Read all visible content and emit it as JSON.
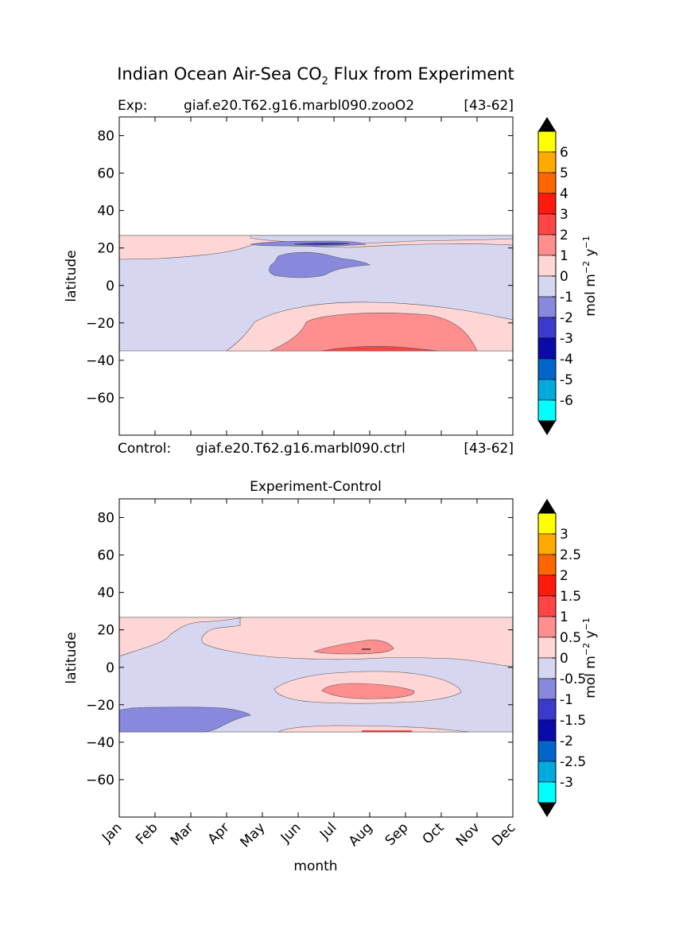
{
  "title_main": "Indian Ocean Air-Sea CO",
  "title_sub": "2",
  "title_rest": " Flux from Experiment",
  "xlabel": "month",
  "ylabel": "latitude",
  "colorbar_label_main": "mol m",
  "colorbar_label_exp1": "−2",
  "colorbar_label_mid": "  y",
  "colorbar_label_exp2": "−1",
  "months": [
    "Jan",
    "Feb",
    "Mar",
    "Apr",
    "May",
    "Jun",
    "Jul",
    "Aug",
    "Sep",
    "Oct",
    "Nov",
    "Dec"
  ],
  "y_ticks": [
    "80",
    "60",
    "40",
    "20",
    "0",
    "−20",
    "−40",
    "−60"
  ],
  "panel_top": {
    "header_left": "Exp:",
    "header_mid": "giaf.e20.T62.g16.marbl090.zooO2",
    "header_right": "[43-62]",
    "footer_left": "Control:",
    "footer_mid": "giaf.e20.T62.g16.marbl090.ctrl",
    "footer_right": "[43-62]",
    "colorbar_labels": [
      "6",
      "5",
      "4",
      "3",
      "2",
      "1",
      "0",
      "-1",
      "-2",
      "-3",
      "-4",
      "-5",
      "-6"
    ]
  },
  "panel_bottom": {
    "title": "Experiment-Control",
    "colorbar_labels": [
      "3",
      "2.5",
      "2",
      "1.5",
      "1",
      "0.5",
      "0",
      "-0.5",
      "-1",
      "-1.5",
      "-2",
      "-2.5",
      "-3"
    ]
  },
  "colorbar_colors": [
    "#ffff00",
    "#ffaa00",
    "#ff6600",
    "#ff1a0d",
    "#ff4444",
    "#ff8e8e",
    "#ffd6d6",
    "#d6d6f0",
    "#8888dd",
    "#3a3acc",
    "#0a0aaa",
    "#0066cc",
    "#00aadd",
    "#00ffff"
  ],
  "chart_data": [
    {
      "type": "heatmap",
      "title": "Indian Ocean Air-Sea CO2 Flux from Experiment",
      "xlabel": "month",
      "ylabel": "latitude",
      "x_categories": [
        "Jan",
        "Feb",
        "Mar",
        "Apr",
        "May",
        "Jun",
        "Jul",
        "Aug",
        "Sep",
        "Oct",
        "Nov",
        "Dec"
      ],
      "ylim": [
        -80,
        90
      ],
      "data_lat_range": [
        -34,
        27
      ],
      "levels": [
        -6,
        -5,
        -4,
        -3,
        -2,
        -1,
        0,
        1,
        2,
        3,
        4,
        5,
        6
      ],
      "units": "mol m-2 y-1",
      "regions": [
        {
          "desc": "background",
          "value_range": [
            -1,
            0
          ]
        },
        {
          "desc": "north band 20-27N",
          "value_range": [
            0,
            1
          ]
        },
        {
          "desc": "Jun-Aug 5-18N",
          "value_range": [
            -2,
            -1
          ]
        },
        {
          "desc": "Jul-Aug 22-26N",
          "value_range": [
            -2,
            -1
          ]
        },
        {
          "desc": "south -8 to -34",
          "value_range": [
            0,
            1
          ]
        },
        {
          "desc": "May-Oct -15 to -34",
          "value_range": [
            1,
            2
          ]
        },
        {
          "desc": "Jul-Sep -32 to -34",
          "value_range": [
            2,
            3
          ]
        }
      ]
    },
    {
      "type": "heatmap",
      "title": "Experiment-Control",
      "xlabel": "month",
      "ylabel": "latitude",
      "x_categories": [
        "Jan",
        "Feb",
        "Mar",
        "Apr",
        "May",
        "Jun",
        "Jul",
        "Aug",
        "Sep",
        "Oct",
        "Nov",
        "Dec"
      ],
      "ylim": [
        -80,
        90
      ],
      "data_lat_range": [
        -34,
        27
      ],
      "levels": [
        -3,
        -2.5,
        -2,
        -1.5,
        -1,
        -0.5,
        0,
        0.5,
        1,
        1.5,
        2,
        2.5,
        3
      ],
      "units": "mol m-2 y-1",
      "regions": [
        {
          "desc": "background",
          "value_range": [
            -0.5,
            0
          ]
        },
        {
          "desc": "north band 0-27N",
          "value_range": [
            0,
            0.5
          ]
        },
        {
          "desc": "Jul-Sep 5-15N",
          "value_range": [
            0.5,
            1
          ]
        },
        {
          "desc": "Jun-Sep -2 to -16",
          "value_range": [
            0,
            0.5
          ]
        },
        {
          "desc": "Jul-Sep -7 to -14",
          "value_range": [
            0.5,
            1
          ]
        },
        {
          "desc": "Jan-Apr -20 to -34",
          "value_range": [
            -1,
            -0.5
          ]
        },
        {
          "desc": "Jun-Oct -30 to -34",
          "value_range": [
            0,
            0.5
          ]
        }
      ]
    }
  ]
}
